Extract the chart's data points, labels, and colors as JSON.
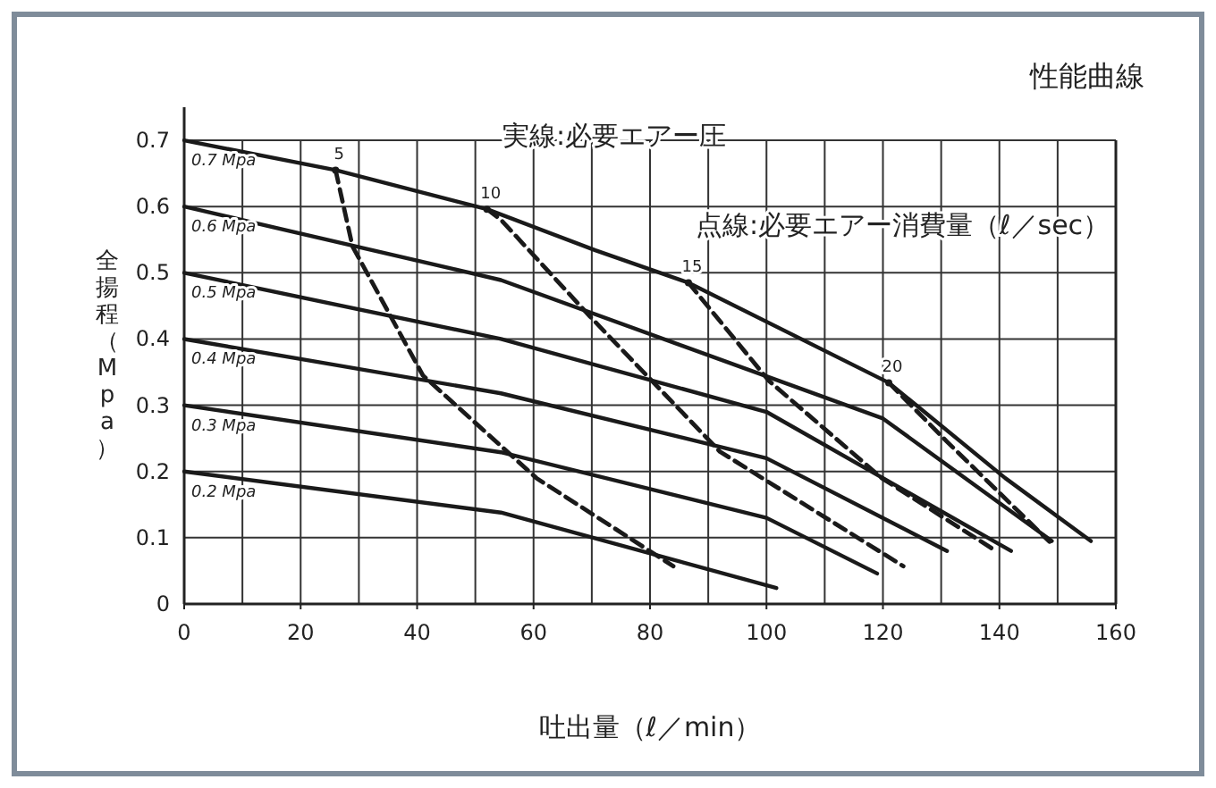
{
  "chart_data": {
    "type": "line",
    "title": "性能曲線",
    "xlabel": "吐出量（ℓ／min）",
    "ylabel": "全揚程（Mpa）",
    "xlim": [
      0,
      160
    ],
    "xticks": [
      0,
      20,
      40,
      60,
      80,
      100,
      120,
      140,
      160
    ],
    "ylim": [
      0,
      0.75
    ],
    "yticks": [
      0,
      0.1,
      0.2,
      0.3,
      0.4,
      0.5,
      0.6,
      0.7
    ],
    "grid": true,
    "annotations": [
      "実線:必要エアー圧",
      "点線:必要エアー消費量（ℓ／sec）"
    ],
    "series": [
      {
        "name": "0.7 Mpa",
        "color": "#1a1a1a",
        "line_style": "solid",
        "x": [
          0,
          26,
          52,
          70.6,
          86.6,
          121,
          141,
          155.7
        ],
        "values": [
          0.7,
          0.655,
          0.596,
          0.534,
          0.485,
          0.334,
          0.19,
          0.095
        ]
      },
      {
        "name": "0.6 Mpa",
        "color": "#1a1a1a",
        "line_style": "solid",
        "x": [
          0,
          54.4,
          120,
          149
        ],
        "values": [
          0.6,
          0.489,
          0.28,
          0.095
        ]
      },
      {
        "name": "0.5 Mpa",
        "color": "#1a1a1a",
        "line_style": "solid",
        "x": [
          0,
          54.4,
          100,
          142
        ],
        "values": [
          0.5,
          0.4,
          0.29,
          0.08
        ]
      },
      {
        "name": "0.4 Mpa",
        "color": "#1a1a1a",
        "line_style": "solid",
        "x": [
          0,
          54.4,
          100,
          131
        ],
        "values": [
          0.4,
          0.318,
          0.22,
          0.08
        ]
      },
      {
        "name": "0.3 Mpa",
        "color": "#1a1a1a",
        "line_style": "solid",
        "x": [
          0,
          54.4,
          100,
          119
        ],
        "values": [
          0.3,
          0.229,
          0.13,
          0.046
        ]
      },
      {
        "name": "0.2 Mpa",
        "color": "#1a1a1a",
        "line_style": "solid",
        "x": [
          0,
          54.4,
          101.7
        ],
        "values": [
          0.2,
          0.138,
          0.024
        ]
      },
      {
        "name": "5",
        "color": "#1a1a1a",
        "line_style": "dashed",
        "x": [
          26,
          28.9,
          41,
          60.5,
          84
        ],
        "values": [
          0.655,
          0.54,
          0.345,
          0.19,
          0.057
        ]
      },
      {
        "name": "10",
        "color": "#1a1a1a",
        "line_style": "dashed",
        "x": [
          52,
          54.4,
          69.7,
          92,
          123.5
        ],
        "values": [
          0.596,
          0.58,
          0.434,
          0.23,
          0.057
        ]
      },
      {
        "name": "15",
        "color": "#1a1a1a",
        "line_style": "dashed",
        "x": [
          86.6,
          100.4,
          119.8,
          139.4
        ],
        "values": [
          0.485,
          0.337,
          0.19,
          0.08
        ]
      },
      {
        "name": "20",
        "color": "#1a1a1a",
        "line_style": "dashed",
        "x": [
          121,
          131,
          148.6
        ],
        "values": [
          0.334,
          0.245,
          0.094
        ]
      }
    ]
  }
}
